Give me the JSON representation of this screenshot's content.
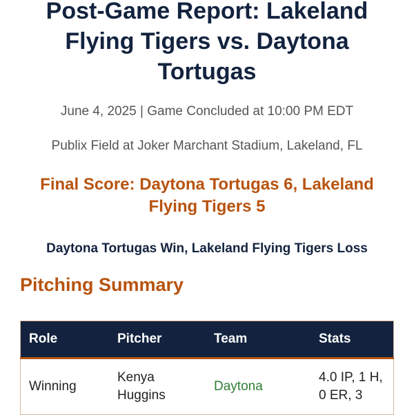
{
  "header": {
    "title": "Post-Game Report: Lakeland Flying Tigers vs. Daytona Tortugas",
    "date_line": "June 4, 2025 | Game Concluded at 10:00 PM EDT",
    "venue": "Publix Field at Joker Marchant Stadium, Lakeland, FL",
    "final_score": "Final Score: Daytona Tortugas 6, Lakeland Flying Tigers 5",
    "result": "Daytona Tortugas Win, Lakeland Flying Tigers Loss"
  },
  "pitching": {
    "heading": "Pitching Summary",
    "columns": [
      "Role",
      "Pitcher",
      "Team",
      "Stats"
    ],
    "rows": [
      {
        "role": "Winning",
        "pitcher": "Kenya Huggins",
        "team": "Daytona",
        "stats": "4.0 IP, 1 H, 0 ER, 3"
      }
    ]
  },
  "colors": {
    "navy": "#13233f",
    "accent": "#b8530f",
    "team_green": "#2e7d32"
  }
}
